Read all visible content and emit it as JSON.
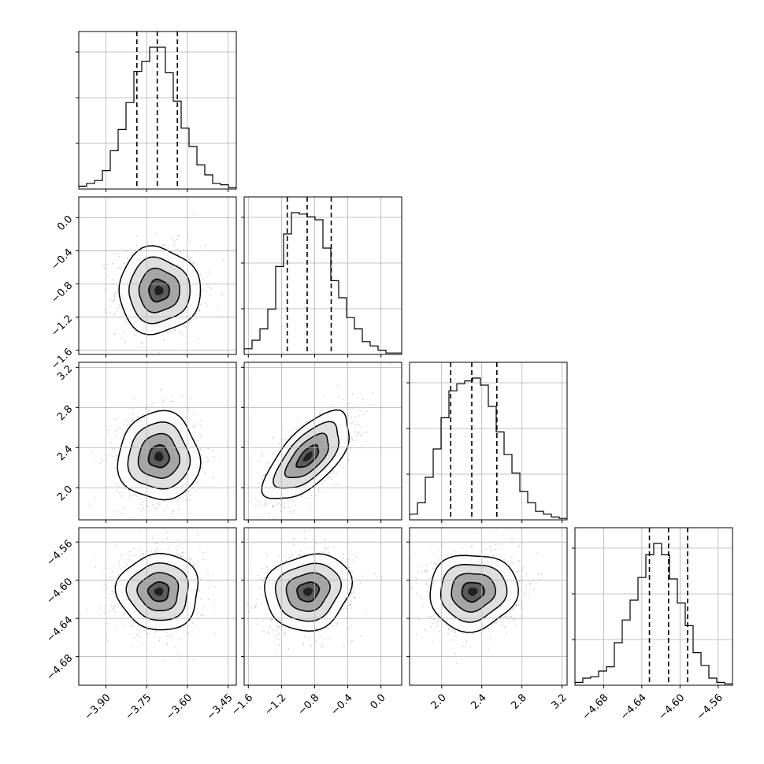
{
  "chart_data": {
    "type": "corner",
    "description_words": "triangular corner plot of 4 parameters: 1D histograms on the diagonal with dashed quantile lines, 2D scatter + density + contours below the diagonal",
    "grid": true,
    "colors": {
      "line": "#000000",
      "grid": "#b0b0b0",
      "scatter": "#9a9a9a"
    },
    "parameters": [
      {
        "index": 0,
        "label": "",
        "range": [
          -4.0,
          -3.42
        ],
        "ticks": [
          "-3.90",
          "-3.75",
          "-3.60",
          "-3.45"
        ],
        "tick_values": [
          -3.9,
          -3.75,
          -3.6,
          -3.45
        ],
        "mean": -3.705,
        "sd": 0.075,
        "quantiles": [
          -3.786,
          -3.711,
          -3.637
        ]
      },
      {
        "index": 1,
        "label": "",
        "range": [
          -1.65,
          0.25
        ],
        "ticks": [
          "-1.6",
          "-1.2",
          "-0.8",
          "-0.4",
          "0.0"
        ],
        "tick_values": [
          -1.6,
          -1.2,
          -0.8,
          -0.4,
          0.0
        ],
        "mean": -0.88,
        "sd": 0.26,
        "quantiles": [
          -1.13,
          -0.89,
          -0.6
        ]
      },
      {
        "index": 2,
        "label": "",
        "range": [
          1.68,
          3.25
        ],
        "ticks": [
          "2.0",
          "2.4",
          "2.8",
          "3.2"
        ],
        "tick_values": [
          2.0,
          2.4,
          2.8,
          3.2
        ],
        "mean": 2.31,
        "sd": 0.22,
        "quantiles": [
          2.09,
          2.3,
          2.55
        ]
      },
      {
        "index": 3,
        "label": "",
        "range": [
          -4.71,
          -4.545
        ],
        "ticks": [
          "-4.68",
          "-4.64",
          "-4.60",
          "-4.56"
        ],
        "tick_values": [
          -4.68,
          -4.64,
          -4.6,
          -4.56
        ],
        "mean": -4.612,
        "sd": 0.02,
        "quantiles": [
          -4.632,
          -4.612,
          -4.592
        ]
      }
    ],
    "correlations": {
      "0-1": 0.0,
      "0-2": 0.0,
      "0-3": 0.0,
      "1-2": 0.65,
      "1-3": 0.12,
      "2-3": 0.05
    },
    "histograms": [
      {
        "param": 0,
        "bins": 20,
        "counts": [
          0.02,
          0.04,
          0.06,
          0.13,
          0.27,
          0.42,
          0.61,
          0.83,
          0.9,
          1.0,
          1.0,
          0.82,
          0.62,
          0.43,
          0.3,
          0.17,
          0.1,
          0.04,
          0.03,
          0.01
        ]
      },
      {
        "param": 1,
        "bins": 20,
        "counts": [
          0.04,
          0.1,
          0.18,
          0.32,
          0.62,
          0.85,
          1.0,
          0.99,
          0.97,
          0.95,
          0.75,
          0.52,
          0.4,
          0.26,
          0.18,
          0.09,
          0.06,
          0.03,
          0.01,
          0.01
        ]
      },
      {
        "param": 2,
        "bins": 20,
        "counts": [
          0.04,
          0.12,
          0.3,
          0.5,
          0.72,
          0.91,
          0.96,
          0.98,
          1.0,
          0.95,
          0.8,
          0.62,
          0.46,
          0.33,
          0.2,
          0.12,
          0.06,
          0.04,
          0.02,
          0.01
        ]
      },
      {
        "param": 3,
        "bins": 20,
        "counts": [
          0.02,
          0.05,
          0.06,
          0.1,
          0.13,
          0.3,
          0.46,
          0.6,
          0.76,
          0.92,
          1.0,
          0.92,
          0.75,
          0.58,
          0.42,
          0.23,
          0.14,
          0.05,
          0.02,
          0.01
        ]
      }
    ],
    "contour_levels_sigma": [
      0.5,
      1.0,
      1.5,
      2.0
    ]
  }
}
